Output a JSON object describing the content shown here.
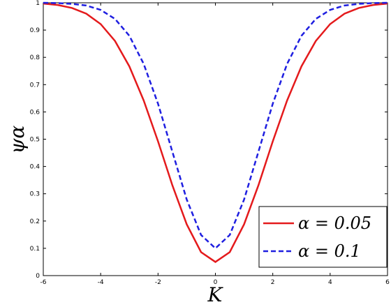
{
  "chart_data": {
    "type": "line",
    "xlabel": "K",
    "ylabel": "ψα",
    "x": [
      -6,
      -5.5,
      -5,
      -4.5,
      -4,
      -3.5,
      -3,
      -2.5,
      -2,
      -1.5,
      -1,
      -0.5,
      0,
      0.5,
      1,
      1.5,
      2,
      2.5,
      3,
      3.5,
      4,
      4.5,
      5,
      5.5,
      6
    ],
    "series": [
      {
        "name": "α = 0.05",
        "color": "#e41a1c",
        "dash": false,
        "values": [
          0.997,
          0.992,
          0.981,
          0.96,
          0.922,
          0.86,
          0.767,
          0.642,
          0.492,
          0.331,
          0.188,
          0.086,
          0.05,
          0.086,
          0.188,
          0.331,
          0.492,
          0.642,
          0.767,
          0.86,
          0.922,
          0.96,
          0.981,
          0.992,
          0.997
        ]
      },
      {
        "name": "α = 0.1",
        "color": "#1f1fe0",
        "dash": true,
        "values": [
          1.0,
          0.999,
          0.996,
          0.99,
          0.974,
          0.941,
          0.879,
          0.776,
          0.63,
          0.454,
          0.279,
          0.149,
          0.1,
          0.149,
          0.279,
          0.454,
          0.63,
          0.776,
          0.879,
          0.941,
          0.974,
          0.99,
          0.996,
          0.999,
          1.0
        ]
      }
    ],
    "xlim": [
      -6,
      6
    ],
    "xticks": [
      -6,
      -4,
      -2,
      0,
      2,
      4,
      6
    ],
    "ylim": [
      0,
      1
    ],
    "yticks": [
      0,
      0.1,
      0.2,
      0.3,
      0.4,
      0.5,
      0.6,
      0.7,
      0.8,
      0.9,
      1
    ],
    "legend": "lower right"
  }
}
